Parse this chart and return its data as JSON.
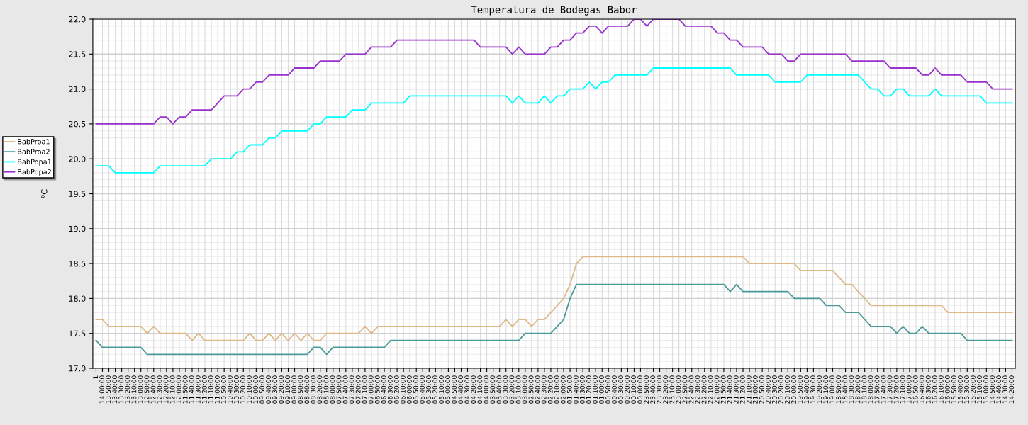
{
  "chart_data": {
    "type": "line",
    "title": "Temperatura de Bodegas Babor",
    "ylabel": "ºC",
    "categories": [
      "1",
      "14:00:00",
      "13:50:00",
      "13:40:00",
      "13:30:00",
      "13:20:00",
      "13:10:00",
      "13:00:00",
      "12:50:00",
      "12:40:00",
      "12:30:00",
      "12:20:00",
      "12:10:00",
      "12:00:00",
      "11:50:00",
      "11:40:00",
      "11:30:00",
      "11:20:00",
      "11:10:00",
      "11:00:00",
      "10:50:00",
      "10:40:00",
      "10:30:00",
      "10:20:00",
      "10:10:00",
      "10:00:00",
      "09:50:00",
      "09:40:00",
      "09:30:00",
      "09:20:00",
      "09:10:00",
      "09:00:00",
      "08:50:00",
      "08:40:00",
      "08:30:00",
      "08:20:00",
      "08:10:00",
      "08:00:00",
      "07:50:00",
      "07:40:00",
      "07:30:00",
      "07:20:00",
      "07:10:00",
      "07:00:00",
      "06:50:00",
      "06:40:00",
      "06:30:00",
      "06:20:00",
      "06:10:00",
      "06:00:00",
      "05:50:00",
      "05:40:00",
      "05:30:00",
      "05:20:00",
      "05:10:00",
      "05:00:00",
      "04:50:00",
      "04:40:00",
      "04:30:00",
      "04:20:00",
      "04:10:00",
      "04:00:00",
      "03:50:00",
      "03:40:00",
      "03:30:00",
      "03:20:00",
      "03:10:00",
      "03:00:00",
      "02:50:00",
      "02:40:00",
      "02:30:00",
      "02:20:00",
      "02:10:00",
      "02:00:00",
      "01:50:00",
      "01:40:00",
      "01:30:00",
      "01:20:00",
      "01:10:00",
      "01:00:00",
      "00:50:00",
      "00:40:00",
      "00:30:00",
      "00:20:00",
      "00:10:00",
      "00:00:00",
      "23:50:00",
      "23:40:00",
      "23:30:00",
      "23:20:00",
      "23:10:00",
      "23:00:00",
      "22:50:00",
      "22:40:00",
      "22:30:00",
      "22:20:00",
      "22:10:00",
      "22:00:00",
      "21:50:00",
      "21:40:00",
      "21:30:00",
      "21:20:00",
      "21:10:00",
      "21:00:00",
      "20:50:00",
      "20:40:00",
      "20:30:00",
      "20:20:00",
      "20:10:00",
      "20:00:00",
      "19:50:00",
      "19:40:00",
      "19:30:00",
      "19:20:00",
      "19:10:00",
      "19:00:00",
      "18:50:00",
      "18:40:00",
      "18:30:00",
      "18:20:00",
      "18:10:00",
      "18:00:00",
      "17:50:00",
      "17:40:00",
      "17:30:00",
      "17:20:00",
      "17:10:00",
      "17:00:00",
      "16:50:00",
      "16:40:00",
      "16:30:00",
      "16:20:00",
      "16:10:00",
      "16:00:00",
      "15:50:00",
      "15:40:00",
      "15:30:00",
      "15:20:00",
      "15:10:00",
      "15:00:00",
      "14:50:00",
      "14:40:00",
      "14:30:00",
      "14:20:00"
    ],
    "ylim": [
      17.0,
      22.0
    ],
    "yticks": [
      {
        "value": 17.0,
        "label": "17.0"
      },
      {
        "value": 17.5,
        "label": "17.5"
      },
      {
        "value": 18.0,
        "label": "18.0"
      },
      {
        "value": 18.5,
        "label": "18.5"
      },
      {
        "value": 19.0,
        "label": "19.0"
      },
      {
        "value": 19.5,
        "label": "19.5"
      },
      {
        "value": 20.0,
        "label": "20.0"
      },
      {
        "value": 20.5,
        "label": "20.5"
      },
      {
        "value": 21.0,
        "label": "21.0"
      },
      {
        "value": 21.5,
        "label": "21.5"
      },
      {
        "value": 22.0,
        "label": "22.0"
      }
    ],
    "grid": true,
    "legend": "left",
    "line_style": "solid",
    "series": [
      {
        "name": "BabProa1",
        "color": "#deb887",
        "values": [
          17.7,
          17.7,
          17.6,
          17.6,
          17.6,
          17.6,
          17.6,
          17.6,
          17.5,
          17.6,
          17.5,
          17.5,
          17.5,
          17.5,
          17.5,
          17.4,
          17.5,
          17.4,
          17.4,
          17.4,
          17.4,
          17.4,
          17.4,
          17.4,
          17.5,
          17.4,
          17.4,
          17.5,
          17.4,
          17.5,
          17.4,
          17.5,
          17.4,
          17.5,
          17.4,
          17.4,
          17.5,
          17.5,
          17.5,
          17.5,
          17.5,
          17.5,
          17.6,
          17.5,
          17.6,
          17.6,
          17.6,
          17.6,
          17.6,
          17.6,
          17.6,
          17.6,
          17.6,
          17.6,
          17.6,
          17.6,
          17.6,
          17.6,
          17.6,
          17.6,
          17.6,
          17.6,
          17.6,
          17.6,
          17.7,
          17.6,
          17.7,
          17.7,
          17.6,
          17.7,
          17.7,
          17.8,
          17.9,
          18.0,
          18.2,
          18.5,
          18.6,
          18.6,
          18.6,
          18.6,
          18.6,
          18.6,
          18.6,
          18.6,
          18.6,
          18.6,
          18.6,
          18.6,
          18.6,
          18.6,
          18.6,
          18.6,
          18.6,
          18.6,
          18.6,
          18.6,
          18.6,
          18.6,
          18.6,
          18.6,
          18.6,
          18.6,
          18.5,
          18.5,
          18.5,
          18.5,
          18.5,
          18.5,
          18.5,
          18.5,
          18.4,
          18.4,
          18.4,
          18.4,
          18.4,
          18.4,
          18.3,
          18.2,
          18.2,
          18.1,
          18.0,
          17.9,
          17.9,
          17.9,
          17.9,
          17.9,
          17.9,
          17.9,
          17.9,
          17.9,
          17.9,
          17.9,
          17.9,
          17.8,
          17.8,
          17.8,
          17.8,
          17.8,
          17.8,
          17.8,
          17.8,
          17.8,
          17.8,
          17.8
        ]
      },
      {
        "name": "BabProa2",
        "color": "#4b9a9a",
        "values": [
          17.4,
          17.3,
          17.3,
          17.3,
          17.3,
          17.3,
          17.3,
          17.3,
          17.2,
          17.2,
          17.2,
          17.2,
          17.2,
          17.2,
          17.2,
          17.2,
          17.2,
          17.2,
          17.2,
          17.2,
          17.2,
          17.2,
          17.2,
          17.2,
          17.2,
          17.2,
          17.2,
          17.2,
          17.2,
          17.2,
          17.2,
          17.2,
          17.2,
          17.2,
          17.3,
          17.3,
          17.2,
          17.3,
          17.3,
          17.3,
          17.3,
          17.3,
          17.3,
          17.3,
          17.3,
          17.3,
          17.4,
          17.4,
          17.4,
          17.4,
          17.4,
          17.4,
          17.4,
          17.4,
          17.4,
          17.4,
          17.4,
          17.4,
          17.4,
          17.4,
          17.4,
          17.4,
          17.4,
          17.4,
          17.4,
          17.4,
          17.4,
          17.5,
          17.5,
          17.5,
          17.5,
          17.5,
          17.6,
          17.7,
          18.0,
          18.2,
          18.2,
          18.2,
          18.2,
          18.2,
          18.2,
          18.2,
          18.2,
          18.2,
          18.2,
          18.2,
          18.2,
          18.2,
          18.2,
          18.2,
          18.2,
          18.2,
          18.2,
          18.2,
          18.2,
          18.2,
          18.2,
          18.2,
          18.2,
          18.1,
          18.2,
          18.1,
          18.1,
          18.1,
          18.1,
          18.1,
          18.1,
          18.1,
          18.1,
          18.0,
          18.0,
          18.0,
          18.0,
          18.0,
          17.9,
          17.9,
          17.9,
          17.8,
          17.8,
          17.8,
          17.7,
          17.6,
          17.6,
          17.6,
          17.6,
          17.5,
          17.6,
          17.5,
          17.5,
          17.6,
          17.5,
          17.5,
          17.5,
          17.5,
          17.5,
          17.5,
          17.4,
          17.4,
          17.4,
          17.4,
          17.4,
          17.4,
          17.4,
          17.4
        ]
      },
      {
        "name": "BabPopa1",
        "color": "#00ffff",
        "values": [
          19.9,
          19.9,
          19.9,
          19.8,
          19.8,
          19.8,
          19.8,
          19.8,
          19.8,
          19.8,
          19.9,
          19.9,
          19.9,
          19.9,
          19.9,
          19.9,
          19.9,
          19.9,
          20.0,
          20.0,
          20.0,
          20.0,
          20.1,
          20.1,
          20.2,
          20.2,
          20.2,
          20.3,
          20.3,
          20.4,
          20.4,
          20.4,
          20.4,
          20.4,
          20.5,
          20.5,
          20.6,
          20.6,
          20.6,
          20.6,
          20.7,
          20.7,
          20.7,
          20.8,
          20.8,
          20.8,
          20.8,
          20.8,
          20.8,
          20.9,
          20.9,
          20.9,
          20.9,
          20.9,
          20.9,
          20.9,
          20.9,
          20.9,
          20.9,
          20.9,
          20.9,
          20.9,
          20.9,
          20.9,
          20.9,
          20.8,
          20.9,
          20.8,
          20.8,
          20.8,
          20.9,
          20.8,
          20.9,
          20.9,
          21.0,
          21.0,
          21.0,
          21.1,
          21.0,
          21.1,
          21.1,
          21.2,
          21.2,
          21.2,
          21.2,
          21.2,
          21.2,
          21.3,
          21.3,
          21.3,
          21.3,
          21.3,
          21.3,
          21.3,
          21.3,
          21.3,
          21.3,
          21.3,
          21.3,
          21.3,
          21.2,
          21.2,
          21.2,
          21.2,
          21.2,
          21.2,
          21.1,
          21.1,
          21.1,
          21.1,
          21.1,
          21.2,
          21.2,
          21.2,
          21.2,
          21.2,
          21.2,
          21.2,
          21.2,
          21.2,
          21.1,
          21.0,
          21.0,
          20.9,
          20.9,
          21.0,
          21.0,
          20.9,
          20.9,
          20.9,
          20.9,
          21.0,
          20.9,
          20.9,
          20.9,
          20.9,
          20.9,
          20.9,
          20.9,
          20.8,
          20.8,
          20.8,
          20.8,
          20.8
        ]
      },
      {
        "name": "BabPopa2",
        "color": "#9932cc",
        "values": [
          20.5,
          20.5,
          20.5,
          20.5,
          20.5,
          20.5,
          20.5,
          20.5,
          20.5,
          20.5,
          20.6,
          20.6,
          20.5,
          20.6,
          20.6,
          20.7,
          20.7,
          20.7,
          20.7,
          20.8,
          20.9,
          20.9,
          20.9,
          21.0,
          21.0,
          21.1,
          21.1,
          21.2,
          21.2,
          21.2,
          21.2,
          21.3,
          21.3,
          21.3,
          21.3,
          21.4,
          21.4,
          21.4,
          21.4,
          21.5,
          21.5,
          21.5,
          21.5,
          21.6,
          21.6,
          21.6,
          21.6,
          21.7,
          21.7,
          21.7,
          21.7,
          21.7,
          21.7,
          21.7,
          21.7,
          21.7,
          21.7,
          21.7,
          21.7,
          21.7,
          21.6,
          21.6,
          21.6,
          21.6,
          21.6,
          21.5,
          21.6,
          21.5,
          21.5,
          21.5,
          21.5,
          21.6,
          21.6,
          21.7,
          21.7,
          21.8,
          21.8,
          21.9,
          21.9,
          21.8,
          21.9,
          21.9,
          21.9,
          21.9,
          22.0,
          22.0,
          21.9,
          22.0,
          22.0,
          22.0,
          22.0,
          22.0,
          21.9,
          21.9,
          21.9,
          21.9,
          21.9,
          21.8,
          21.8,
          21.7,
          21.7,
          21.6,
          21.6,
          21.6,
          21.6,
          21.5,
          21.5,
          21.5,
          21.4,
          21.4,
          21.5,
          21.5,
          21.5,
          21.5,
          21.5,
          21.5,
          21.5,
          21.5,
          21.4,
          21.4,
          21.4,
          21.4,
          21.4,
          21.4,
          21.3,
          21.3,
          21.3,
          21.3,
          21.3,
          21.2,
          21.2,
          21.3,
          21.2,
          21.2,
          21.2,
          21.2,
          21.1,
          21.1,
          21.1,
          21.1,
          21.0,
          21.0,
          21.0,
          21.0
        ]
      }
    ]
  }
}
